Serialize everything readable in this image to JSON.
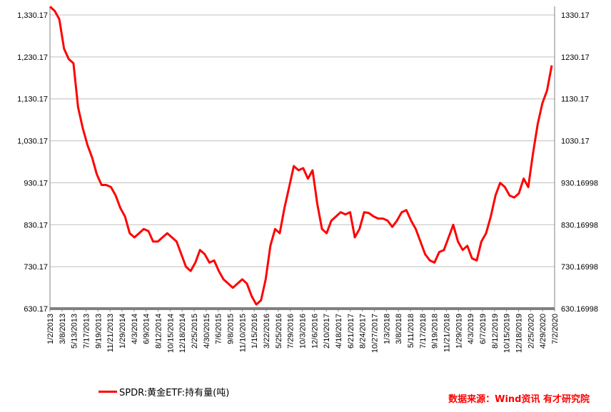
{
  "legend": {
    "series_label": "SPDR:黄金ETF:持有量(吨)"
  },
  "source_text": "数据来源：Wind资讯 有才研究院",
  "colors": {
    "series": "#ff0000",
    "grid": "#bfbfbf",
    "axis": "#808080"
  },
  "chart_data": {
    "type": "line",
    "title": "",
    "xlabel": "",
    "ylabel": "",
    "x_tick_labels": [
      "1/2/2013",
      "3/8/2013",
      "5/13/2013",
      "7/17/2013",
      "9/19/2013",
      "11/21/2013",
      "1/29/2014",
      "4/3/2014",
      "6/9/2014",
      "8/12/2014",
      "10/15/2014",
      "12/18/2014",
      "2/25/2015",
      "4/30/2015",
      "7/6/2015",
      "9/8/2015",
      "11/10/2015",
      "1/15/2016",
      "3/22/2016",
      "5/25/2016",
      "7/29/2016",
      "10/3/2016",
      "12/6/2016",
      "2/10/2017",
      "4/18/2017",
      "6/21/2017",
      "8/24/2017",
      "10/27/2017",
      "1/3/2018",
      "3/8/2018",
      "5/11/2018",
      "7/17/2018",
      "9/19/2018",
      "11/21/2018",
      "1/29/2019",
      "4/3/2019",
      "6/7/2019",
      "8/12/2019",
      "10/15/2019",
      "12/18/2019",
      "2/25/2020",
      "4/29/2020",
      "7/2/2020"
    ],
    "y_left_ticks": [
      "630.17",
      "730.17",
      "830.17",
      "930.17",
      "1,030.17",
      "1,130.17",
      "1,230.17",
      "1,330.17"
    ],
    "y_right_ticks": [
      "630.16998",
      "730.16998",
      "830.16998",
      "930.16998",
      "1030.17",
      "1130.17",
      "1230.17",
      "1330.17"
    ],
    "ylim": [
      630.17,
      1330.17
    ],
    "grid": true,
    "legend_position": "bottom-left",
    "series": [
      {
        "name": "SPDR:黄金ETF:持有量(吨)",
        "values": [
          [
            0,
            1350
          ],
          [
            1,
            1340
          ],
          [
            2,
            1320
          ],
          [
            3,
            1250
          ],
          [
            4,
            1225
          ],
          [
            5,
            1215
          ],
          [
            6,
            1110
          ],
          [
            7,
            1060
          ],
          [
            8,
            1020
          ],
          [
            9,
            990
          ],
          [
            10,
            950
          ],
          [
            11,
            925
          ],
          [
            12,
            925
          ],
          [
            13,
            920
          ],
          [
            14,
            900
          ],
          [
            15,
            870
          ],
          [
            16,
            850
          ],
          [
            17,
            810
          ],
          [
            18,
            800
          ],
          [
            19,
            810
          ],
          [
            20,
            820
          ],
          [
            21,
            815
          ],
          [
            22,
            790
          ],
          [
            23,
            790
          ],
          [
            24,
            800
          ],
          [
            25,
            810
          ],
          [
            26,
            800
          ],
          [
            27,
            790
          ],
          [
            28,
            760
          ],
          [
            29,
            730
          ],
          [
            30,
            720
          ],
          [
            31,
            740
          ],
          [
            32,
            770
          ],
          [
            33,
            760
          ],
          [
            34,
            740
          ],
          [
            35,
            745
          ],
          [
            36,
            720
          ],
          [
            37,
            700
          ],
          [
            38,
            690
          ],
          [
            39,
            680
          ],
          [
            40,
            690
          ],
          [
            41,
            700
          ],
          [
            42,
            690
          ],
          [
            43,
            660
          ],
          [
            44,
            640
          ],
          [
            45,
            650
          ],
          [
            46,
            700
          ],
          [
            47,
            780
          ],
          [
            48,
            820
          ],
          [
            49,
            810
          ],
          [
            50,
            870
          ],
          [
            51,
            920
          ],
          [
            52,
            970
          ],
          [
            53,
            960
          ],
          [
            54,
            965
          ],
          [
            55,
            940
          ],
          [
            56,
            960
          ],
          [
            57,
            880
          ],
          [
            58,
            820
          ],
          [
            59,
            810
          ],
          [
            60,
            840
          ],
          [
            61,
            850
          ],
          [
            62,
            860
          ],
          [
            63,
            855
          ],
          [
            64,
            860
          ],
          [
            65,
            800
          ],
          [
            66,
            820
          ],
          [
            67,
            860
          ],
          [
            68,
            858
          ],
          [
            69,
            850
          ],
          [
            70,
            845
          ],
          [
            71,
            845
          ],
          [
            72,
            840
          ],
          [
            73,
            825
          ],
          [
            74,
            840
          ],
          [
            75,
            860
          ],
          [
            76,
            865
          ],
          [
            77,
            840
          ],
          [
            78,
            820
          ],
          [
            79,
            790
          ],
          [
            80,
            760
          ],
          [
            81,
            745
          ],
          [
            82,
            740
          ],
          [
            83,
            765
          ],
          [
            84,
            770
          ],
          [
            85,
            800
          ],
          [
            86,
            830
          ],
          [
            87,
            790
          ],
          [
            88,
            770
          ],
          [
            89,
            780
          ],
          [
            90,
            750
          ],
          [
            91,
            745
          ],
          [
            92,
            790
          ],
          [
            93,
            810
          ],
          [
            94,
            850
          ],
          [
            95,
            900
          ],
          [
            96,
            930
          ],
          [
            97,
            920
          ],
          [
            98,
            900
          ],
          [
            99,
            895
          ],
          [
            100,
            905
          ],
          [
            101,
            940
          ],
          [
            102,
            920
          ],
          [
            103,
            1000
          ],
          [
            104,
            1070
          ],
          [
            105,
            1120
          ],
          [
            106,
            1150
          ],
          [
            107,
            1210
          ]
        ]
      }
    ]
  }
}
